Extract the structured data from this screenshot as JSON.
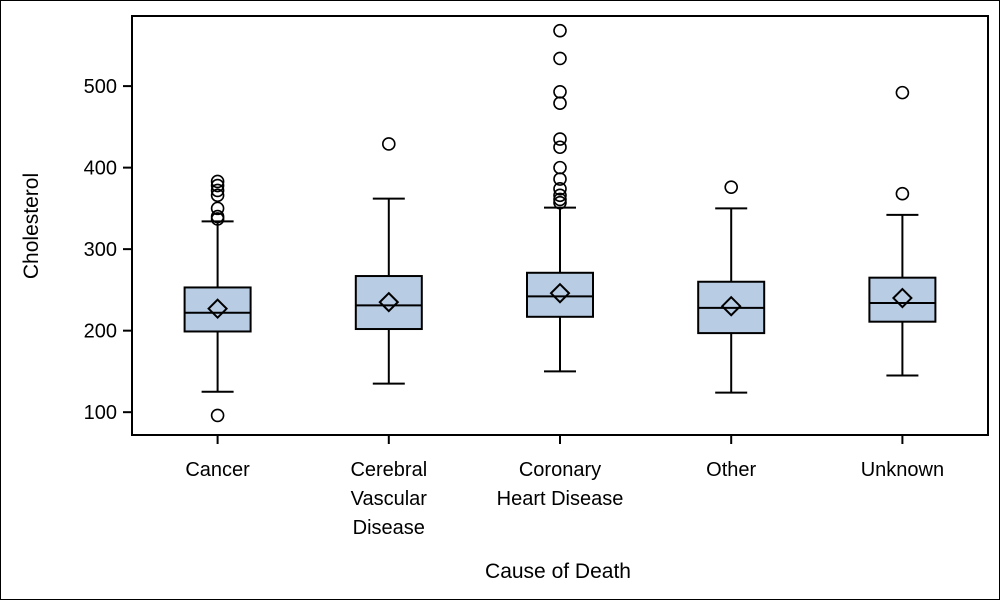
{
  "chart_data": {
    "type": "box",
    "title": "",
    "xlabel": "Cause of Death",
    "ylabel": "Cholesterol",
    "ylim": [
      72,
      586
    ],
    "yticks": [
      100,
      200,
      300,
      400,
      500
    ],
    "grid": false,
    "colors": {
      "box_fill": "#b8cce4",
      "line": "#000000",
      "background": "#ffffff"
    },
    "categories": [
      {
        "name": "Cancer",
        "label_lines": [
          "Cancer"
        ],
        "whisker_low": 125,
        "q1": 199,
        "median": 222,
        "q3": 253,
        "whisker_high": 334,
        "mean": 227,
        "outliers": [
          96,
          337,
          340,
          350,
          366,
          372,
          378,
          383
        ]
      },
      {
        "name": "Cerebral Vascular Disease",
        "label_lines": [
          "Cerebral",
          "Vascular",
          "Disease"
        ],
        "whisker_low": 135,
        "q1": 202,
        "median": 231,
        "q3": 267,
        "whisker_high": 362,
        "mean": 235,
        "outliers": [
          429
        ]
      },
      {
        "name": "Coronary Heart Disease",
        "label_lines": [
          "Coronary",
          "Heart Disease"
        ],
        "whisker_low": 150,
        "q1": 217,
        "median": 242,
        "q3": 271,
        "whisker_high": 351,
        "mean": 246,
        "outliers": [
          357,
          361,
          366,
          374,
          386,
          400,
          425,
          435,
          479,
          493,
          534,
          568
        ]
      },
      {
        "name": "Other",
        "label_lines": [
          "Other"
        ],
        "whisker_low": 124,
        "q1": 197,
        "median": 228,
        "q3": 260,
        "whisker_high": 350,
        "mean": 230,
        "outliers": [
          376
        ]
      },
      {
        "name": "Unknown",
        "label_lines": [
          "Unknown"
        ],
        "whisker_low": 145,
        "q1": 211,
        "median": 234,
        "q3": 265,
        "whisker_high": 342,
        "mean": 240,
        "outliers": [
          368,
          492
        ]
      }
    ]
  }
}
